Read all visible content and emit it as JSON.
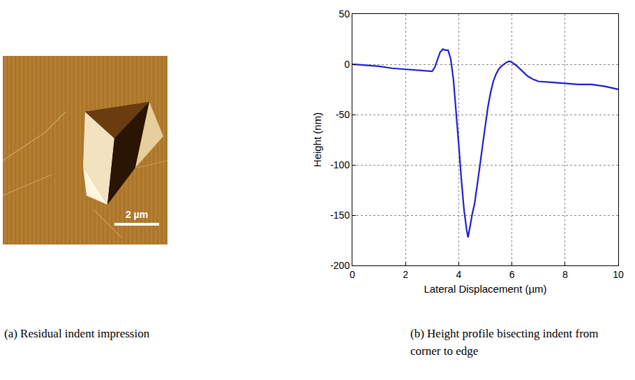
{
  "image_panel": {
    "caption": "(a) Residual indent impression",
    "scale_bar_label": "2 µm"
  },
  "chart_data": {
    "type": "line",
    "caption": "(b) Height profile bisecting indent from corner to edge",
    "x_label": "Lateral Displacement (µm)",
    "y_label": "Height (nm)",
    "x": [
      0,
      0.5,
      1,
      1.5,
      2,
      2.5,
      3.0,
      3.1,
      3.2,
      3.3,
      3.4,
      3.5,
      3.6,
      3.7,
      3.8,
      3.9,
      4.0,
      4.1,
      4.2,
      4.3,
      4.35,
      4.4,
      4.5,
      4.6,
      4.7,
      4.8,
      4.9,
      5.0,
      5.1,
      5.2,
      5.3,
      5.4,
      5.5,
      5.6,
      5.7,
      5.8,
      5.9,
      6.0,
      6.1,
      6.2,
      6.4,
      6.6,
      6.8,
      7.0,
      7.5,
      8.0,
      8.5,
      9.0,
      9.5,
      10.0
    ],
    "values": [
      0,
      -1,
      -2,
      -4,
      -5,
      -6,
      -7,
      -3,
      5,
      12,
      15,
      14,
      14,
      5,
      -15,
      -45,
      -80,
      -115,
      -145,
      -165,
      -172,
      -165,
      -150,
      -138,
      -120,
      -100,
      -80,
      -60,
      -42,
      -28,
      -17,
      -10,
      -5,
      -2,
      0,
      2,
      3,
      2,
      0,
      -2,
      -7,
      -12,
      -15,
      -17,
      -18,
      -19,
      -20,
      -20,
      -22,
      -25
    ],
    "color": "#1f1fd0",
    "xlim": [
      0,
      10
    ],
    "xticks": [
      0,
      2,
      4,
      6,
      8,
      10
    ],
    "ylim": [
      -200,
      50
    ],
    "yticks": [
      -200,
      -150,
      -100,
      -50,
      0,
      50
    ],
    "grid": true
  }
}
